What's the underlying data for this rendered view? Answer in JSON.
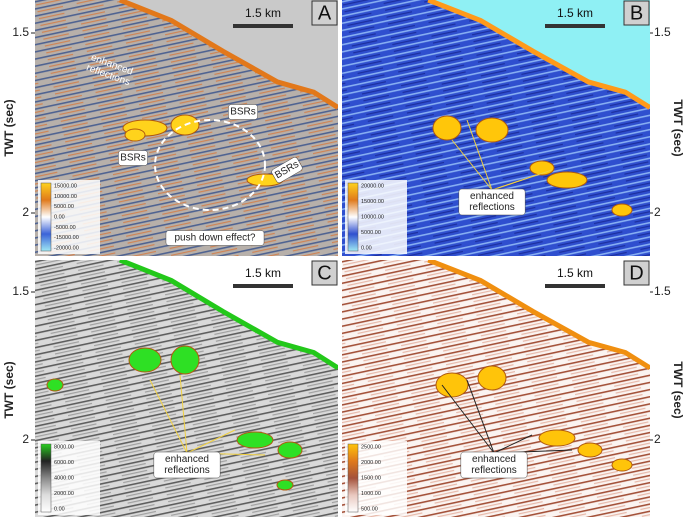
{
  "rows": [
    {
      "label_left": "TWT (sec)",
      "label_right": "TWT (sec)",
      "ticks": [
        "1.5",
        "2"
      ]
    },
    {
      "label_left": "TWT (sec)",
      "label_right": "TWT (sec)",
      "ticks": [
        "1.5",
        "2"
      ]
    }
  ],
  "panels": [
    {
      "label": "A",
      "scale": "1.5 km",
      "colorbar": [
        "15000.00",
        "10000.00",
        "5000.00",
        "0.00",
        "-5000.00",
        "-15000.00",
        "-20000.00"
      ],
      "annotations": [
        [
          "enhanced",
          "reflections"
        ],
        [
          "BSRs"
        ],
        [
          "BSRs"
        ],
        [
          "BSRs"
        ],
        [
          "push down effect?"
        ]
      ]
    },
    {
      "label": "B",
      "scale": "1.5 km",
      "colorbar": [
        "20000.00",
        "15000.00",
        "10000.00",
        "5000.00",
        "0.00"
      ],
      "annotations": [
        [
          "enhanced",
          "reflections"
        ]
      ]
    },
    {
      "label": "C",
      "scale": "1.5 km",
      "colorbar": [
        "8000.00",
        "6000.00",
        "4000.00",
        "2000.00",
        "0.00"
      ],
      "annotations": [
        [
          "enhanced",
          "reflections"
        ]
      ]
    },
    {
      "label": "D",
      "scale": "1.5 km",
      "colorbar": [
        "2500.00",
        "2000.00",
        "1500.00",
        "1000.00",
        "500.00"
      ],
      "annotations": [
        [
          "enhanced",
          "reflections"
        ]
      ]
    }
  ]
}
